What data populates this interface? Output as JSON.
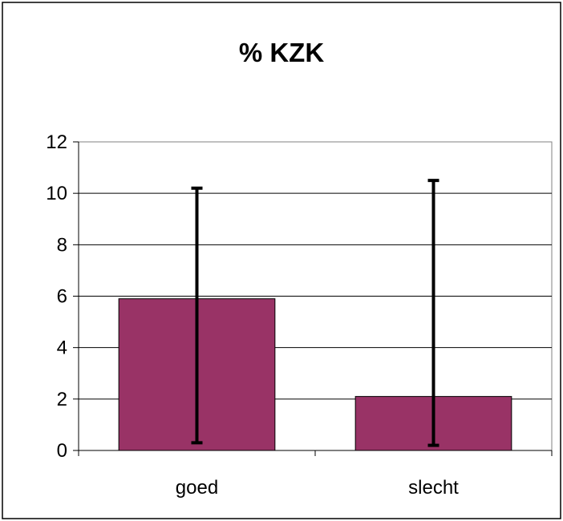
{
  "chart_data": {
    "type": "bar",
    "title": "% KZK",
    "categories": [
      "goed",
      "slecht"
    ],
    "values": [
      5.9,
      2.1
    ],
    "error_bars": [
      {
        "low": 0.3,
        "high": 10.2
      },
      {
        "low": 0.2,
        "high": 10.5
      }
    ],
    "ylim": [
      0,
      12
    ],
    "yticks": [
      0,
      2,
      4,
      6,
      8,
      10,
      12
    ],
    "xlabel": "",
    "ylabel": "",
    "grid": true,
    "legend": "none",
    "bar_color": "#993366",
    "error_bar_color": "#000000"
  }
}
